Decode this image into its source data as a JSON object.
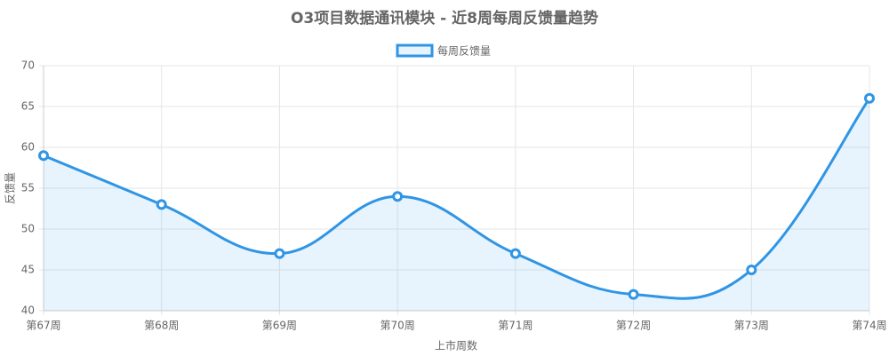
{
  "chart_data": {
    "type": "line",
    "title": "O3项目数据通讯模块 - 近8周每周反馈量趋势",
    "x_label": "上市周数",
    "y_label": "反馈量",
    "categories": [
      "第67周",
      "第68周",
      "第69周",
      "第70周",
      "第71周",
      "第72周",
      "第73周",
      "第74周"
    ],
    "series": [
      {
        "name": "每周反馈量",
        "color": "#2f95e4",
        "fill": "rgba(54,162,235,0.12)",
        "values": [
          59,
          53,
          47,
          54,
          47,
          42,
          45,
          66
        ]
      }
    ],
    "ylim": [
      40,
      70
    ],
    "yticks": [
      40,
      45,
      50,
      55,
      60,
      65,
      70
    ],
    "grid": true
  }
}
